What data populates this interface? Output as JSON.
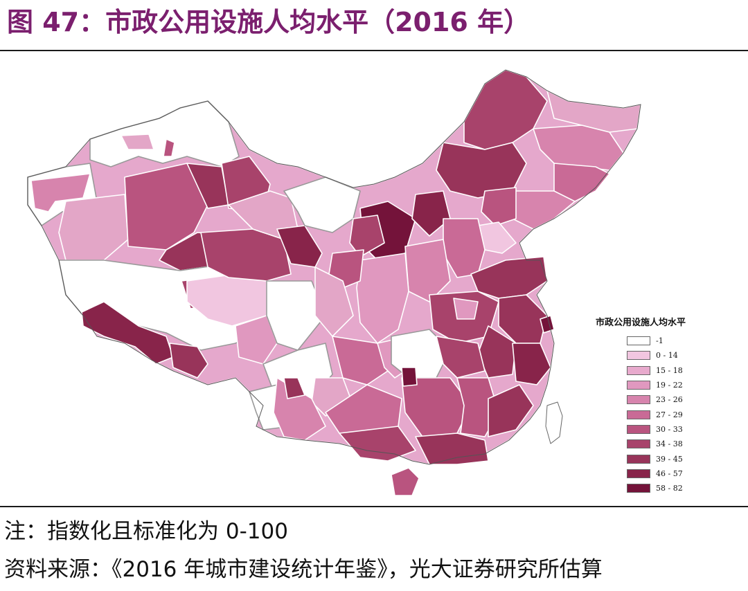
{
  "title": "图 47：市政公用设施人均水平（2016 年）",
  "legend": {
    "title": "市政公用设施人均水平",
    "items": [
      {
        "label": "-1",
        "color": "#ffffff"
      },
      {
        "label": "0 - 14",
        "color": "#f1c6e0"
      },
      {
        "label": "15 - 18",
        "color": "#e8aacd"
      },
      {
        "label": "19 - 22",
        "color": "#e098bf"
      },
      {
        "label": "23 - 26",
        "color": "#d784ad"
      },
      {
        "label": "27 - 29",
        "color": "#c96a96"
      },
      {
        "label": "30 - 33",
        "color": "#b9547f"
      },
      {
        "label": "34 - 38",
        "color": "#a8436b"
      },
      {
        "label": "39 - 45",
        "color": "#98345a"
      },
      {
        "label": "46 - 57",
        "color": "#88244a"
      },
      {
        "label": "58 - 82",
        "color": "#74133a"
      }
    ]
  },
  "note": "注：指数化且标准化为 0-100",
  "source": "资料来源：《2016 年城市建设统计年鉴》，光大证券研究所估算"
}
